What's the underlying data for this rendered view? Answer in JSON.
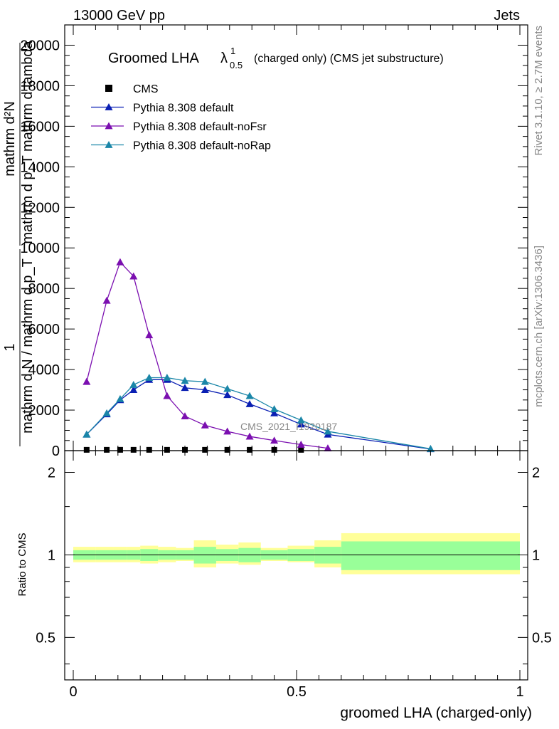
{
  "header": {
    "left": "13000 GeV pp",
    "right": "Jets"
  },
  "side_labels": {
    "rivet": "Rivet 3.1.10, ≥ 2.7M events",
    "mcplots": "mcplots.cern.ch [arXiv:1306.3436]"
  },
  "main_plot": {
    "title_main": "Groomed LHA",
    "title_lambda": "λ",
    "title_sup": "1",
    "title_sub": "0.5",
    "title_rest": "(charged only) (CMS jet substructure)",
    "ylabel_top": "mathrm d²N",
    "ylabel_mid": "mathrm d p_T mathrm d lambda",
    "ylabel_frac_num": "1",
    "ylabel_frac_den": "mathrm d N / mathrm d p_T",
    "watermark": "CMS_2021_I1920187",
    "yticks": [
      "0",
      "2000",
      "4000",
      "6000",
      "8000",
      "10000",
      "12000",
      "14000",
      "16000",
      "18000",
      "20000"
    ]
  },
  "ratio_plot": {
    "ylabel": "Ratio to CMS",
    "yticks": [
      "0.5",
      "1",
      "2"
    ],
    "xlabel": "groomed LHA (charged-only)",
    "xticks": [
      "0",
      "0.5",
      "1"
    ]
  },
  "legend": [
    {
      "name": "CMS",
      "color": "#000000",
      "marker": "square"
    },
    {
      "name": "Pythia 8.308 default",
      "color": "#0a1fb3",
      "marker": "triangle"
    },
    {
      "name": "Pythia 8.308 default-noFsr",
      "color": "#7b0fb0",
      "marker": "triangle"
    },
    {
      "name": "Pythia 8.308 default-noRap",
      "color": "#1a86a8",
      "marker": "triangle"
    }
  ],
  "chart_data": {
    "type": "line",
    "xlabel": "groomed LHA (charged-only)",
    "xlim": [
      0,
      1
    ],
    "ylim": [
      0,
      21000
    ],
    "series": [
      {
        "name": "CMS",
        "color": "#000000",
        "x": [
          0.03,
          0.075,
          0.105,
          0.135,
          0.17,
          0.21,
          0.25,
          0.295,
          0.345,
          0.395,
          0.45,
          0.51
        ],
        "y": [
          40,
          40,
          40,
          40,
          40,
          40,
          40,
          40,
          40,
          40,
          40,
          40
        ]
      },
      {
        "name": "Pythia 8.308 default",
        "color": "#0a1fb3",
        "x": [
          0.03,
          0.075,
          0.105,
          0.135,
          0.17,
          0.21,
          0.25,
          0.295,
          0.345,
          0.395,
          0.45,
          0.51,
          0.57,
          0.8
        ],
        "y": [
          800,
          1800,
          2500,
          3000,
          3500,
          3500,
          3100,
          3000,
          2750,
          2300,
          1850,
          1300,
          800,
          80
        ]
      },
      {
        "name": "Pythia 8.308 default-noFsr",
        "color": "#7b0fb0",
        "x": [
          0.03,
          0.075,
          0.105,
          0.135,
          0.17,
          0.21,
          0.25,
          0.295,
          0.345,
          0.395,
          0.45,
          0.51,
          0.57
        ],
        "y": [
          3400,
          7400,
          9300,
          8600,
          5700,
          2700,
          1700,
          1250,
          950,
          700,
          500,
          300,
          120
        ]
      },
      {
        "name": "Pythia 8.308 default-noRap",
        "color": "#1a86a8",
        "x": [
          0.03,
          0.075,
          0.105,
          0.135,
          0.17,
          0.21,
          0.25,
          0.295,
          0.345,
          0.395,
          0.45,
          0.51,
          0.57,
          0.8
        ],
        "y": [
          800,
          1850,
          2550,
          3250,
          3600,
          3600,
          3450,
          3400,
          3050,
          2700,
          2050,
          1500,
          950,
          90
        ]
      }
    ],
    "ratio": {
      "ylim": [
        0.35,
        2.4
      ],
      "log": true,
      "bins": [
        0,
        0.05,
        0.09,
        0.12,
        0.15,
        0.19,
        0.23,
        0.27,
        0.32,
        0.37,
        0.42,
        0.48,
        0.54,
        0.6,
        1.0
      ],
      "stat_lo": [
        0.96,
        0.96,
        0.96,
        0.96,
        0.95,
        0.96,
        0.96,
        0.93,
        0.95,
        0.94,
        0.96,
        0.95,
        0.93,
        0.88
      ],
      "stat_hi": [
        1.04,
        1.04,
        1.04,
        1.04,
        1.05,
        1.04,
        1.04,
        1.07,
        1.05,
        1.06,
        1.04,
        1.05,
        1.07,
        1.12
      ],
      "syst_lo": [
        0.94,
        0.94,
        0.94,
        0.94,
        0.93,
        0.94,
        0.95,
        0.9,
        0.93,
        0.92,
        0.95,
        0.94,
        0.9,
        0.85
      ],
      "syst_hi": [
        1.07,
        1.07,
        1.07,
        1.07,
        1.08,
        1.07,
        1.06,
        1.13,
        1.09,
        1.11,
        1.06,
        1.08,
        1.13,
        1.2
      ]
    }
  }
}
